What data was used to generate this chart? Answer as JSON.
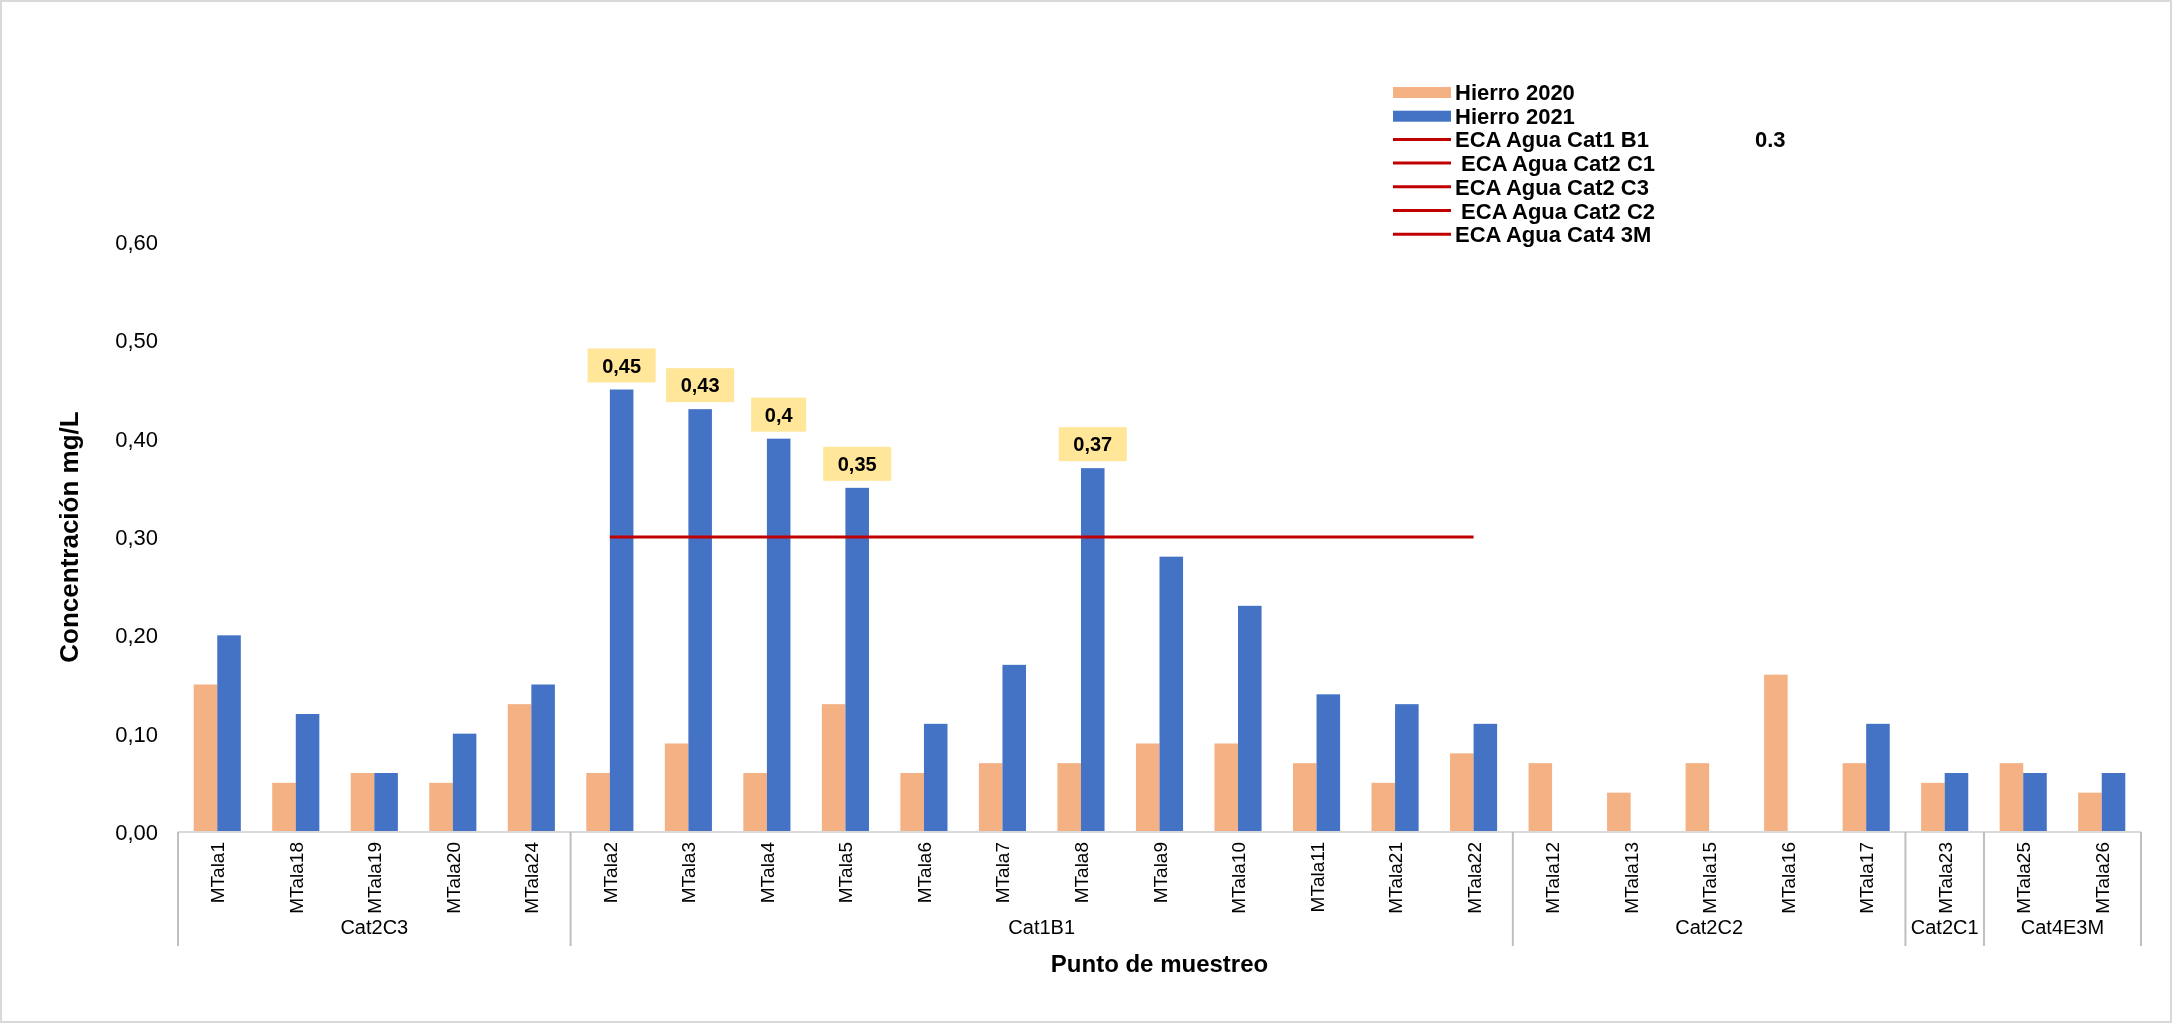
{
  "chart_data": {
    "type": "bar",
    "xlabel": "Punto de muestreo",
    "ylabel": "Concentración mg/L",
    "categories": [
      "MTala1",
      "MTala18",
      "MTala19",
      "MTala20",
      "MTala24",
      "MTala2",
      "MTala3",
      "MTala4",
      "MTala5",
      "MTala6",
      "MTala7",
      "MTala8",
      "MTala9",
      "MTala10",
      "MTala11",
      "MTala21",
      "MTala22",
      "MTala12",
      "MTala13",
      "MTala15",
      "MTala16",
      "MTala17",
      "MTala23",
      "MTala25",
      "MTala26"
    ],
    "series": [
      {
        "name": "Hierro 2020",
        "color": "#f4b183",
        "values": [
          0.15,
          0.05,
          0.06,
          0.05,
          0.13,
          0.06,
          0.09,
          0.06,
          0.13,
          0.06,
          0.07,
          0.07,
          0.09,
          0.09,
          0.07,
          0.05,
          0.08,
          0.07,
          0.04,
          0.07,
          0.16,
          0.07,
          0.05,
          0.07,
          0.04
        ]
      },
      {
        "name": "Hierro 2021",
        "color": "#4472c4",
        "values": [
          0.2,
          0.12,
          0.06,
          0.1,
          0.15,
          0.45,
          0.43,
          0.4,
          0.35,
          0.11,
          0.17,
          0.37,
          0.28,
          0.23,
          0.14,
          0.13,
          0.11,
          null,
          null,
          null,
          null,
          0.11,
          0.06,
          0.06,
          0.06
        ],
        "value_labels": [
          null,
          null,
          null,
          null,
          null,
          "0,45",
          "0,43",
          "0,4",
          "0,35",
          null,
          null,
          "0,37",
          null,
          null,
          null,
          null,
          null,
          null,
          null,
          null,
          null,
          null,
          null,
          null,
          null
        ]
      },
      {
        "name": "ECA Agua Cat1 B1",
        "type": "line",
        "color": "#c00000",
        "values": [
          null,
          null,
          null,
          null,
          null,
          0.3,
          0.3,
          0.3,
          0.3,
          0.3,
          0.3,
          0.3,
          0.3,
          0.3,
          0.3,
          0.3,
          0.3,
          null,
          null,
          null,
          null,
          null,
          null,
          null,
          null
        ]
      },
      {
        "name": " ECA Agua Cat2 C1",
        "type": "line",
        "color": "#c00000",
        "values": [
          null,
          null,
          null,
          null,
          null,
          null,
          null,
          null,
          null,
          null,
          null,
          null,
          null,
          null,
          null,
          null,
          null,
          null,
          null,
          null,
          null,
          null,
          null,
          null,
          null
        ]
      },
      {
        "name": "ECA Agua Cat2 C3",
        "type": "line",
        "color": "#c00000",
        "values": [
          null,
          null,
          null,
          null,
          null,
          null,
          null,
          null,
          null,
          null,
          null,
          null,
          null,
          null,
          null,
          null,
          null,
          null,
          null,
          null,
          null,
          null,
          null,
          null,
          null
        ]
      },
      {
        "name": " ECA Agua Cat2 C2",
        "type": "line",
        "color": "#c00000",
        "values": [
          null,
          null,
          null,
          null,
          null,
          null,
          null,
          null,
          null,
          null,
          null,
          null,
          null,
          null,
          null,
          null,
          null,
          null,
          null,
          null,
          null,
          null,
          null,
          null,
          null
        ]
      },
      {
        "name": "ECA Agua Cat4 3M",
        "type": "line",
        "color": "#c00000",
        "values": [
          null,
          null,
          null,
          null,
          null,
          null,
          null,
          null,
          null,
          null,
          null,
          null,
          null,
          null,
          null,
          null,
          null,
          null,
          null,
          null,
          null,
          null,
          null,
          null,
          null
        ]
      }
    ],
    "annotations": [
      "Cat2C3",
      "Cat1B1",
      "Cat2C2",
      "Cat2C1",
      "Cat4E3M",
      "0.3"
    ],
    "ylim": [
      0,
      0.6
    ],
    "yticks": [
      {
        "value": 0,
        "label": "0,00"
      },
      {
        "value": 0.1,
        "label": "0,10"
      },
      {
        "value": 0.2,
        "label": "0,20"
      },
      {
        "value": 0.3,
        "label": "0,30"
      },
      {
        "value": 0.4,
        "label": "0,40"
      },
      {
        "value": 0.5,
        "label": "0,50"
      },
      {
        "value": 0.6,
        "label": "0,60"
      }
    ],
    "grid": false,
    "legend": "top right"
  }
}
